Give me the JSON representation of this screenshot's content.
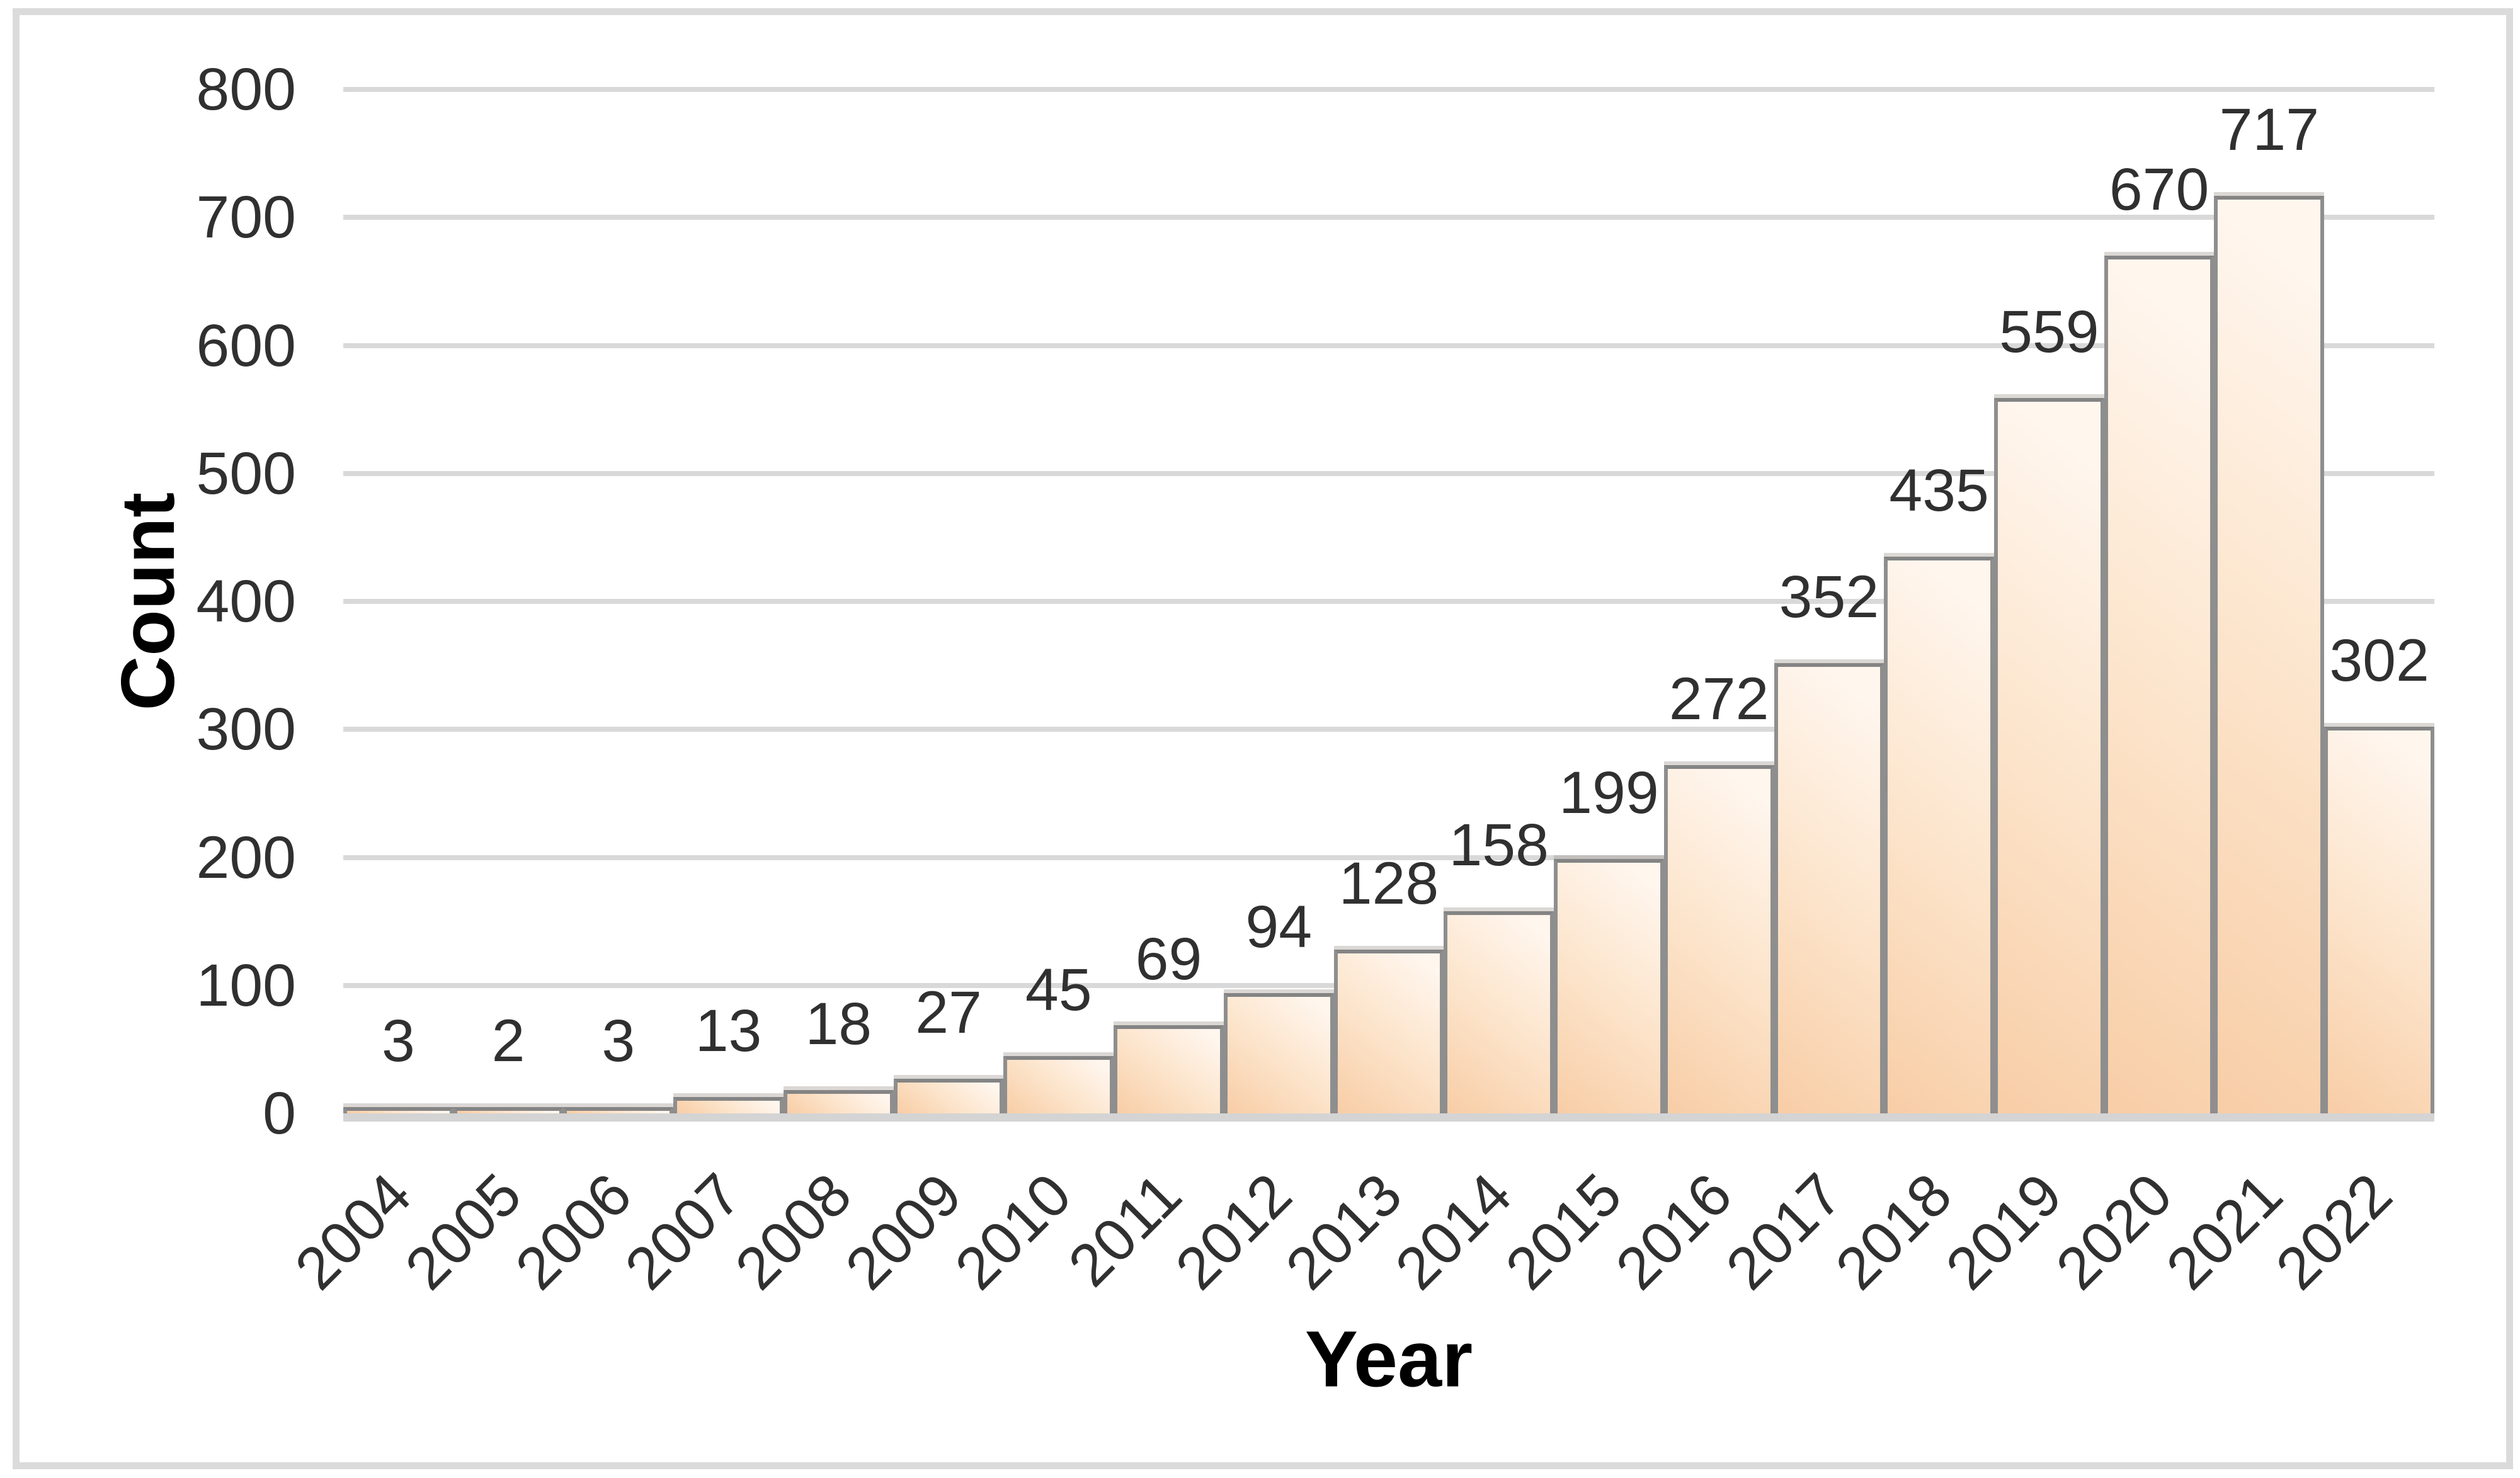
{
  "page": {
    "background": "#ffffff",
    "frame_border_color": "#dbdbdb"
  },
  "chart_data": {
    "type": "bar",
    "title": "",
    "xlabel": "Year",
    "ylabel": "Count",
    "categories": [
      "2004",
      "2005",
      "2006",
      "2007",
      "2008",
      "2009",
      "2010",
      "2011",
      "2012",
      "2013",
      "2014",
      "2015",
      "2016",
      "2017",
      "2018",
      "2019",
      "2020",
      "2021",
      "2022"
    ],
    "values": [
      3,
      2,
      3,
      13,
      18,
      27,
      45,
      69,
      94,
      128,
      158,
      199,
      272,
      352,
      435,
      559,
      670,
      717,
      302
    ],
    "ylim": [
      0,
      800
    ],
    "yticks": [
      0,
      100,
      200,
      300,
      400,
      500,
      600,
      700,
      800
    ],
    "grid": "horizontal",
    "legend_position": "none",
    "bar_gap_percent": 0,
    "data_labels_position": "outside-end",
    "x_tick_rotation_deg": 45,
    "colors": {
      "bar_fill_start": "#f8cda6",
      "bar_fill_mid": "#fce3c9",
      "bar_fill_end": "#fff6ee",
      "bar_border": "#8e8e8e",
      "bar_border_top": "#848484",
      "bar_top_highlight": "rgba(150,140,133,0.35)",
      "gridline": "#d9d9d9",
      "axis_line": "#d4d4d4",
      "tick_text": "#303030",
      "axis_title_text": "#000000"
    }
  }
}
